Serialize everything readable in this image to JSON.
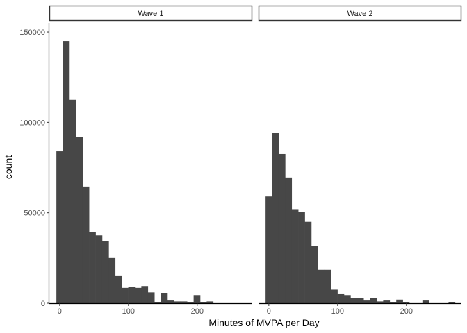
{
  "chart_data": {
    "type": "bar",
    "subtype": "faceted-histogram",
    "xlabel": "Minutes of MVPA per Day",
    "ylabel": "count",
    "xlim": [
      -15,
      280
    ],
    "ylim": [
      0,
      155000
    ],
    "x_ticks": [
      0,
      100,
      200
    ],
    "y_ticks": [
      0,
      50000,
      100000,
      150000
    ],
    "bin_width": 9.5,
    "bar_color": "#474747",
    "strip_fill": "#ffffff",
    "grid": false,
    "panels": [
      {
        "strip_label": "Wave 1",
        "bins": [
          {
            "x": 0,
            "count": 84000
          },
          {
            "x": 9.5,
            "count": 145000
          },
          {
            "x": 19,
            "count": 112500
          },
          {
            "x": 28.5,
            "count": 92000
          },
          {
            "x": 38,
            "count": 64500
          },
          {
            "x": 47.5,
            "count": 39500
          },
          {
            "x": 57,
            "count": 37500
          },
          {
            "x": 66.5,
            "count": 34500
          },
          {
            "x": 76,
            "count": 25000
          },
          {
            "x": 85.5,
            "count": 15000
          },
          {
            "x": 95,
            "count": 8500
          },
          {
            "x": 104.5,
            "count": 9000
          },
          {
            "x": 114,
            "count": 8500
          },
          {
            "x": 123.5,
            "count": 9500
          },
          {
            "x": 133,
            "count": 6000
          },
          {
            "x": 142.5,
            "count": 500
          },
          {
            "x": 152,
            "count": 5500
          },
          {
            "x": 161.5,
            "count": 1500
          },
          {
            "x": 171,
            "count": 1000
          },
          {
            "x": 180.5,
            "count": 1000
          },
          {
            "x": 190,
            "count": 500
          },
          {
            "x": 199.5,
            "count": 4500
          },
          {
            "x": 209,
            "count": 500
          },
          {
            "x": 218.5,
            "count": 1000
          }
        ]
      },
      {
        "strip_label": "Wave 2",
        "bins": [
          {
            "x": 0,
            "count": 59000
          },
          {
            "x": 9.5,
            "count": 94000
          },
          {
            "x": 19,
            "count": 82500
          },
          {
            "x": 28.5,
            "count": 69500
          },
          {
            "x": 38,
            "count": 52000
          },
          {
            "x": 47.5,
            "count": 50500
          },
          {
            "x": 57,
            "count": 45000
          },
          {
            "x": 66.5,
            "count": 31500
          },
          {
            "x": 76,
            "count": 18500
          },
          {
            "x": 85.5,
            "count": 18500
          },
          {
            "x": 95,
            "count": 7500
          },
          {
            "x": 104.5,
            "count": 5000
          },
          {
            "x": 114,
            "count": 4500
          },
          {
            "x": 123.5,
            "count": 3000
          },
          {
            "x": 133,
            "count": 3000
          },
          {
            "x": 142.5,
            "count": 1500
          },
          {
            "x": 152,
            "count": 3000
          },
          {
            "x": 161.5,
            "count": 1000
          },
          {
            "x": 171,
            "count": 1500
          },
          {
            "x": 180.5,
            "count": 500
          },
          {
            "x": 190,
            "count": 2000
          },
          {
            "x": 199.5,
            "count": 500
          },
          {
            "x": 209,
            "count": 0
          },
          {
            "x": 218.5,
            "count": 0
          },
          {
            "x": 228,
            "count": 1500
          },
          {
            "x": 237.5,
            "count": 0
          },
          {
            "x": 247,
            "count": 0
          },
          {
            "x": 256.5,
            "count": 0
          },
          {
            "x": 266,
            "count": 500
          }
        ]
      }
    ]
  }
}
